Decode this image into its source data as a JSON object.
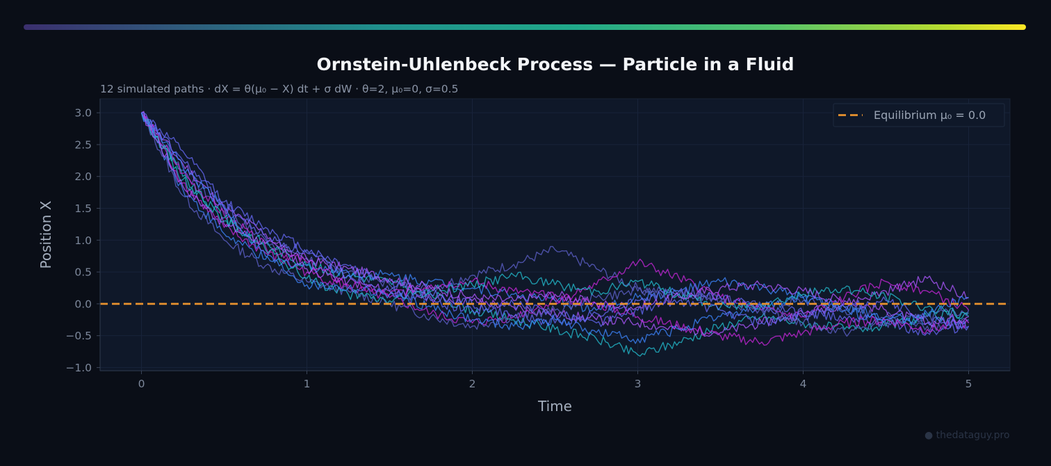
{
  "title": "Ornstein-Uhlenbeck Process — Particle in a Fluid",
  "subtitle": "12 simulated paths  ·  dX = θ(μ₀ − X) dt + σ dW  ·  θ=2, μ₀=0, σ=0.5",
  "watermark": "● thedataguy.pro",
  "colors": {
    "background": "#0a0e17",
    "plot_background": "#0f1829",
    "equilibrium": "#e8922e",
    "path_palette": [
      "#5b5fc7",
      "#c026d3",
      "#22b8c9",
      "#3b82f6",
      "#a855f7",
      "#6366f1"
    ]
  },
  "chart_data": {
    "type": "line",
    "title": "Ornstein-Uhlenbeck Process — Particle in a Fluid",
    "xlabel": "Time",
    "ylabel": "Position X",
    "xlim": [
      -0.25,
      5.25
    ],
    "ylim": [
      -1.05,
      3.22
    ],
    "xticks": [
      0,
      1,
      2,
      3,
      4,
      5
    ],
    "xtick_labels": [
      "0",
      "1",
      "2",
      "3",
      "4",
      "5"
    ],
    "yticks": [
      3.0,
      2.5,
      2.0,
      1.5,
      1.0,
      0.5,
      0.0,
      -0.5,
      -1.0
    ],
    "ytick_labels": [
      "3.0",
      "2.5",
      "2.0",
      "1.5",
      "1.0",
      "0.5",
      "0.0",
      "−0.5",
      "−1.0"
    ],
    "grid": true,
    "legend": {
      "position": "top-right",
      "entries": [
        "Equilibrium μ₀ = 0.0"
      ]
    },
    "equilibrium": 0.0,
    "x": [
      0,
      0.25,
      0.5,
      0.75,
      1.0,
      1.25,
      1.5,
      1.75,
      2.0,
      2.25,
      2.5,
      2.75,
      3.0,
      3.25,
      3.5,
      3.75,
      4.0,
      4.25,
      4.5,
      4.75,
      5.0
    ],
    "series": [
      {
        "values": [
          3.0,
          2.1,
          1.45,
          1.0,
          0.72,
          0.5,
          0.3,
          0.25,
          0.45,
          0.62,
          0.85,
          0.55,
          0.25,
          0.15,
          0.1,
          -0.05,
          0.05,
          -0.1,
          -0.2,
          -0.35,
          -0.3
        ]
      },
      {
        "values": [
          3.0,
          1.9,
          1.2,
          0.8,
          0.5,
          0.25,
          0.1,
          -0.15,
          -0.3,
          -0.2,
          0.05,
          0.3,
          0.65,
          0.4,
          0.1,
          -0.1,
          -0.2,
          0.1,
          0.35,
          0.2,
          -0.1
        ]
      },
      {
        "values": [
          3.0,
          2.0,
          1.3,
          0.95,
          0.6,
          0.45,
          0.35,
          0.15,
          -0.1,
          -0.25,
          -0.4,
          -0.55,
          -0.8,
          -0.6,
          -0.35,
          -0.2,
          -0.3,
          -0.4,
          -0.35,
          -0.2,
          -0.15
        ]
      },
      {
        "values": [
          3.0,
          1.8,
          1.1,
          0.7,
          0.6,
          0.5,
          0.45,
          0.35,
          0.25,
          0.15,
          0.05,
          -0.1,
          0.1,
          0.2,
          0.35,
          0.25,
          0.1,
          -0.05,
          -0.2,
          -0.3,
          -0.25
        ]
      },
      {
        "values": [
          3.0,
          2.2,
          1.5,
          1.1,
          0.55,
          0.35,
          0.2,
          0.1,
          0.05,
          -0.05,
          -0.15,
          -0.25,
          -0.3,
          -0.4,
          -0.45,
          -0.3,
          -0.15,
          0.0,
          0.2,
          0.4,
          0.1
        ]
      },
      {
        "values": [
          3.0,
          2.4,
          1.6,
          1.2,
          0.85,
          0.6,
          0.35,
          0.15,
          0.0,
          -0.2,
          -0.3,
          -0.15,
          0.05,
          0.2,
          0.1,
          -0.05,
          -0.15,
          -0.2,
          -0.3,
          -0.45,
          -0.35
        ]
      },
      {
        "values": [
          3.0,
          1.7,
          1.0,
          0.6,
          0.35,
          0.2,
          0.0,
          -0.2,
          -0.35,
          -0.2,
          -0.1,
          0.1,
          0.2,
          0.15,
          0.05,
          -0.1,
          -0.3,
          -0.45,
          -0.3,
          -0.2,
          -0.1
        ]
      },
      {
        "values": [
          3.0,
          2.05,
          1.4,
          0.9,
          0.65,
          0.3,
          0.15,
          0.3,
          0.35,
          0.2,
          0.1,
          0.0,
          -0.2,
          -0.35,
          -0.5,
          -0.6,
          -0.45,
          -0.3,
          -0.25,
          -0.4,
          -0.3
        ]
      },
      {
        "values": [
          3.0,
          1.95,
          1.35,
          0.85,
          0.4,
          0.15,
          0.05,
          0.2,
          0.3,
          0.45,
          0.3,
          0.2,
          0.35,
          0.15,
          -0.05,
          0.0,
          0.15,
          0.25,
          0.1,
          -0.05,
          -0.2
        ]
      },
      {
        "values": [
          3.0,
          2.15,
          1.5,
          0.75,
          0.3,
          0.25,
          0.15,
          -0.05,
          -0.25,
          -0.35,
          -0.25,
          -0.45,
          -0.55,
          -0.4,
          -0.2,
          -0.05,
          0.1,
          -0.1,
          -0.25,
          -0.15,
          0.1
        ]
      },
      {
        "values": [
          3.0,
          1.85,
          1.25,
          0.95,
          0.7,
          0.55,
          0.4,
          0.25,
          0.1,
          0.05,
          0.15,
          0.0,
          -0.05,
          0.1,
          0.25,
          0.3,
          0.2,
          0.05,
          -0.1,
          -0.3,
          -0.2
        ]
      },
      {
        "values": [
          3.0,
          2.25,
          1.55,
          1.05,
          0.8,
          0.45,
          0.2,
          0.05,
          -0.1,
          0.0,
          -0.15,
          -0.3,
          -0.1,
          0.05,
          -0.1,
          -0.3,
          -0.2,
          -0.05,
          0.05,
          -0.25,
          -0.35
        ]
      }
    ]
  }
}
